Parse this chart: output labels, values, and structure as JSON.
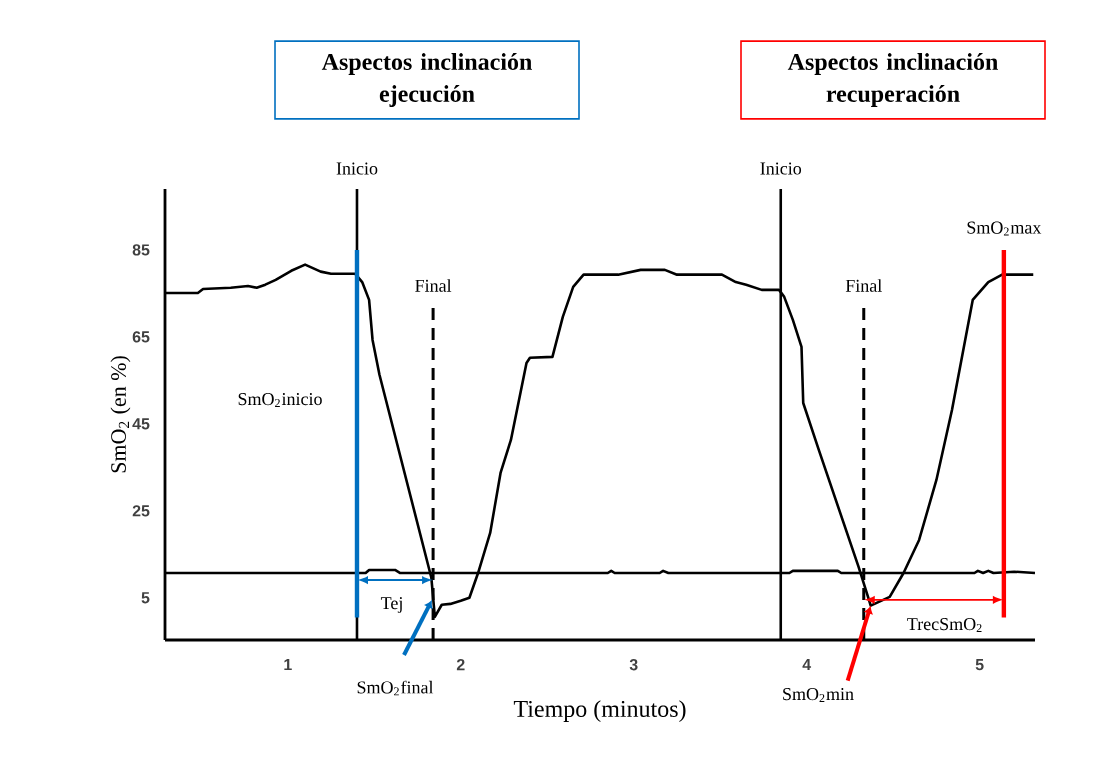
{
  "chart_data": {
    "type": "line",
    "xlabel": "Tiempo (minutos)",
    "ylabel": "SmO$_{2}$ (en %)",
    "xlim": [
      0.29,
      5.32
    ],
    "ylim": [
      -4.7,
      99
    ],
    "xticks": [
      1,
      2,
      3,
      4,
      5
    ],
    "yticks": [
      5,
      25,
      45,
      65,
      85
    ],
    "series": [
      {
        "color": "#000000",
        "x": [
          0.29,
          0.48,
          0.51,
          0.67,
          0.77,
          0.82,
          0.87,
          0.93,
          1.02,
          1.1,
          1.19,
          1.25,
          1.39,
          1.43,
          1.47,
          1.49,
          1.53,
          1.83,
          1.85,
          1.89,
          1.94,
          2.0,
          2.05,
          2.1,
          2.17,
          2.23,
          2.29,
          2.38,
          2.4,
          2.53,
          2.59,
          2.65,
          2.71,
          2.91,
          3.04,
          3.18,
          3.25,
          3.51,
          3.59,
          3.65,
          3.74,
          3.84,
          3.87,
          3.92,
          3.97,
          3.98,
          4.07,
          4.3,
          4.36,
          4.37,
          4.48,
          4.56,
          4.65,
          4.75,
          4.84,
          4.96,
          5.05,
          5.13,
          5.31
        ],
        "values": [
          75.1,
          75.1,
          76.0,
          76.3,
          76.7,
          76.3,
          77.0,
          78.1,
          80.2,
          81.6,
          80.0,
          79.5,
          79.5,
          77.6,
          73.5,
          64.3,
          56.3,
          9.6,
          0.6,
          3.4,
          3.6,
          4.3,
          5.0,
          10.7,
          19.9,
          33.7,
          41.3,
          59.0,
          60.2,
          60.4,
          69.6,
          76.5,
          79.3,
          79.3,
          80.4,
          80.4,
          79.3,
          79.3,
          77.6,
          77.0,
          75.8,
          75.8,
          74.2,
          68.9,
          62.7,
          49.8,
          39.0,
          12.1,
          4.5,
          3.2,
          5.2,
          10.7,
          18.3,
          32.1,
          48.2,
          73.5,
          77.6,
          79.3,
          79.3
        ]
      },
      {
        "color": "#000000",
        "x": [
          0.29,
          1.45,
          1.47,
          1.62,
          1.65,
          2.85,
          2.87,
          2.89,
          3.15,
          3.17,
          3.2,
          3.9,
          3.92,
          4.18,
          4.2,
          4.97,
          4.99,
          5.02,
          5.05,
          5.08,
          5.2,
          5.32
        ],
        "values": [
          10.7,
          10.7,
          11.4,
          11.4,
          10.7,
          10.7,
          11.2,
          10.7,
          10.7,
          11.2,
          10.7,
          10.7,
          11.2,
          11.2,
          10.7,
          10.7,
          11.2,
          10.7,
          11.2,
          10.7,
          11.0,
          10.7
        ]
      }
    ],
    "ref_lines": [
      {
        "axis": "x",
        "value": 1.4,
        "label": "Inicio"
      },
      {
        "axis": "x",
        "value": 1.4,
        "color": "#0070c0"
      },
      {
        "axis": "x",
        "value": 1.84,
        "label": "Final",
        "line_style": "dashed"
      },
      {
        "axis": "x",
        "value": 3.85,
        "label": "Inicio"
      },
      {
        "axis": "x",
        "value": 4.33,
        "label": "Final",
        "line_style": "dashed"
      },
      {
        "axis": "x",
        "value": 5.14,
        "label": "SmO$_{2}$max",
        "color": "#ff0000"
      }
    ],
    "annotations": [
      "**Aspectos inclinación ejecución**",
      "**Aspectos inclinación recuperación**",
      "SmO$_{2}$inicio",
      "Tej",
      "SmO$_{2}$final",
      "TrecSmO$_{2}$",
      {
        "text": "SmO$_{2}$min",
        "x": 4.37,
        "y": 3.2
      }
    ]
  }
}
